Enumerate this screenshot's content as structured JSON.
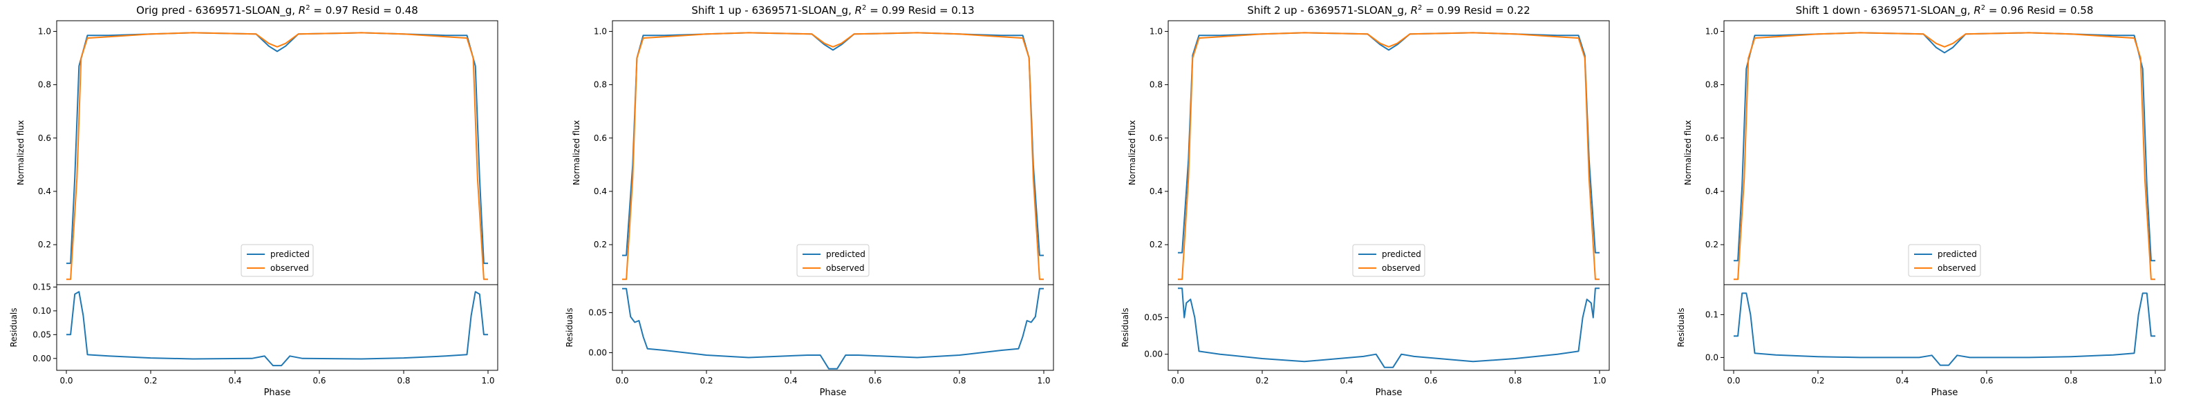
{
  "colors": {
    "predicted": "#1f77b4",
    "observed": "#ff7f0e",
    "axes": "#000000",
    "background": "#ffffff"
  },
  "chart_data": [
    {
      "type": "line",
      "title": "Orig pred - 6369571-SLOAN_g, $R^2 = 0.97$ Resid = 0.48",
      "title_text": {
        "prefix": "Orig pred - 6369571-SLOAN_g, ",
        "r": "R",
        "sup": "2",
        "rest": " = 0.97 Resid = 0.48"
      },
      "xlabel": "Phase",
      "flux": {
        "ylabel": "Normalized flux",
        "ylim": [
          0.05,
          1.04
        ],
        "yticks": [
          "0.2",
          "0.4",
          "0.6",
          "0.8",
          "1.0"
        ],
        "legend": {
          "position": "lower center",
          "entries": [
            "predicted",
            "observed"
          ]
        },
        "series": [
          {
            "name": "predicted",
            "x": [
              0.0,
              0.01,
              0.02,
              0.03,
              0.05,
              0.1,
              0.2,
              0.3,
              0.45,
              0.48,
              0.5,
              0.52,
              0.55,
              0.7,
              0.8,
              0.9,
              0.95,
              0.97,
              0.98,
              0.99,
              1.0
            ],
            "y": [
              0.13,
              0.13,
              0.45,
              0.87,
              0.985,
              0.985,
              0.99,
              0.995,
              0.99,
              0.945,
              0.925,
              0.945,
              0.99,
              0.995,
              0.99,
              0.985,
              0.985,
              0.87,
              0.45,
              0.13,
              0.13
            ]
          },
          {
            "name": "observed",
            "x": [
              0.0,
              0.01,
              0.025,
              0.035,
              0.05,
              0.1,
              0.2,
              0.3,
              0.45,
              0.48,
              0.5,
              0.52,
              0.55,
              0.7,
              0.8,
              0.9,
              0.95,
              0.965,
              0.975,
              0.99,
              1.0
            ],
            "y": [
              0.07,
              0.07,
              0.45,
              0.9,
              0.975,
              0.98,
              0.99,
              0.995,
              0.99,
              0.955,
              0.942,
              0.955,
              0.99,
              0.995,
              0.99,
              0.98,
              0.975,
              0.9,
              0.45,
              0.07,
              0.07
            ]
          }
        ]
      },
      "resid": {
        "ylabel": "Residuals",
        "ylim": [
          -0.025,
          0.155
        ],
        "yticks": [
          "0.00",
          "0.05",
          "0.10",
          "0.15"
        ],
        "xticks": [
          "0.0",
          "0.2",
          "0.4",
          "0.6",
          "0.8",
          "1.0"
        ],
        "x": [
          0.0,
          0.01,
          0.02,
          0.03,
          0.04,
          0.05,
          0.1,
          0.2,
          0.3,
          0.44,
          0.47,
          0.49,
          0.51,
          0.53,
          0.56,
          0.7,
          0.8,
          0.9,
          0.95,
          0.96,
          0.97,
          0.98,
          0.99,
          1.0
        ],
        "y": [
          0.05,
          0.05,
          0.135,
          0.14,
          0.09,
          0.008,
          0.005,
          0.001,
          -0.001,
          0.0,
          0.005,
          -0.015,
          -0.015,
          0.005,
          0.0,
          -0.001,
          0.001,
          0.005,
          0.008,
          0.09,
          0.14,
          0.135,
          0.05,
          0.05
        ]
      }
    },
    {
      "type": "line",
      "title": "Shift 1 up - 6369571-SLOAN_g, $R^2 = 0.99$ Resid = 0.13",
      "title_text": {
        "prefix": "Shift 1 up - 6369571-SLOAN_g, ",
        "r": "R",
        "sup": "2",
        "rest": " = 0.99 Resid = 0.13"
      },
      "xlabel": "Phase",
      "flux": {
        "ylabel": "Normalized flux",
        "ylim": [
          0.05,
          1.04
        ],
        "yticks": [
          "0.2",
          "0.4",
          "0.6",
          "0.8",
          "1.0"
        ],
        "legend": {
          "position": "lower center",
          "entries": [
            "predicted",
            "observed"
          ]
        },
        "series": [
          {
            "name": "predicted",
            "x": [
              0.0,
              0.01,
              0.025,
              0.035,
              0.05,
              0.1,
              0.2,
              0.3,
              0.45,
              0.48,
              0.5,
              0.52,
              0.55,
              0.7,
              0.8,
              0.9,
              0.95,
              0.965,
              0.975,
              0.99,
              1.0
            ],
            "y": [
              0.16,
              0.16,
              0.5,
              0.9,
              0.985,
              0.985,
              0.99,
              0.995,
              0.99,
              0.95,
              0.93,
              0.95,
              0.99,
              0.995,
              0.99,
              0.985,
              0.985,
              0.9,
              0.5,
              0.16,
              0.16
            ]
          },
          {
            "name": "observed",
            "x": [
              0.0,
              0.01,
              0.025,
              0.035,
              0.05,
              0.1,
              0.2,
              0.3,
              0.45,
              0.48,
              0.5,
              0.52,
              0.55,
              0.7,
              0.8,
              0.9,
              0.95,
              0.965,
              0.975,
              0.99,
              1.0
            ],
            "y": [
              0.07,
              0.07,
              0.45,
              0.9,
              0.975,
              0.98,
              0.99,
              0.995,
              0.99,
              0.955,
              0.942,
              0.955,
              0.99,
              0.995,
              0.99,
              0.98,
              0.975,
              0.9,
              0.45,
              0.07,
              0.07
            ]
          }
        ]
      },
      "resid": {
        "ylabel": "Residuals",
        "ylim": [
          -0.022,
          0.085
        ],
        "yticks": [
          "0.00",
          "0.05"
        ],
        "xticks": [
          "0.0",
          "0.2",
          "0.4",
          "0.6",
          "0.8",
          "1.0"
        ],
        "x": [
          0.0,
          0.01,
          0.02,
          0.03,
          0.04,
          0.05,
          0.06,
          0.1,
          0.2,
          0.3,
          0.44,
          0.47,
          0.49,
          0.51,
          0.53,
          0.56,
          0.7,
          0.8,
          0.9,
          0.94,
          0.95,
          0.96,
          0.97,
          0.98,
          0.99,
          1.0
        ],
        "y": [
          0.08,
          0.08,
          0.045,
          0.038,
          0.04,
          0.02,
          0.005,
          0.003,
          -0.003,
          -0.006,
          -0.003,
          -0.003,
          -0.02,
          -0.02,
          -0.003,
          -0.003,
          -0.006,
          -0.003,
          0.003,
          0.005,
          0.02,
          0.04,
          0.038,
          0.045,
          0.08,
          0.08
        ]
      }
    },
    {
      "type": "line",
      "title": "Shift 2 up - 6369571-SLOAN_g, $R^2 = 0.99$ Resid = 0.22",
      "title_text": {
        "prefix": "Shift 2 up - 6369571-SLOAN_g, ",
        "r": "R",
        "sup": "2",
        "rest": " = 0.99 Resid = 0.22"
      },
      "xlabel": "Phase",
      "flux": {
        "ylabel": "Normalized flux",
        "ylim": [
          0.05,
          1.04
        ],
        "yticks": [
          "0.2",
          "0.4",
          "0.6",
          "0.8",
          "1.0"
        ],
        "legend": {
          "position": "lower center",
          "entries": [
            "predicted",
            "observed"
          ]
        },
        "series": [
          {
            "name": "predicted",
            "x": [
              0.0,
              0.01,
              0.025,
              0.035,
              0.05,
              0.1,
              0.2,
              0.3,
              0.45,
              0.48,
              0.5,
              0.52,
              0.55,
              0.7,
              0.8,
              0.9,
              0.95,
              0.965,
              0.975,
              0.99,
              1.0
            ],
            "y": [
              0.17,
              0.17,
              0.52,
              0.91,
              0.985,
              0.985,
              0.99,
              0.995,
              0.99,
              0.95,
              0.93,
              0.95,
              0.99,
              0.995,
              0.99,
              0.985,
              0.985,
              0.91,
              0.52,
              0.17,
              0.17
            ]
          },
          {
            "name": "observed",
            "x": [
              0.0,
              0.01,
              0.025,
              0.035,
              0.05,
              0.1,
              0.2,
              0.3,
              0.45,
              0.48,
              0.5,
              0.52,
              0.55,
              0.7,
              0.8,
              0.9,
              0.95,
              0.965,
              0.975,
              0.99,
              1.0
            ],
            "y": [
              0.07,
              0.07,
              0.45,
              0.9,
              0.975,
              0.98,
              0.99,
              0.995,
              0.99,
              0.955,
              0.942,
              0.955,
              0.99,
              0.995,
              0.99,
              0.98,
              0.975,
              0.9,
              0.45,
              0.07,
              0.07
            ]
          }
        ]
      },
      "resid": {
        "ylabel": "Residuals",
        "ylim": [
          -0.022,
          0.095
        ],
        "yticks": [
          "0.00",
          "0.05"
        ],
        "xticks": [
          "0.0",
          "0.2",
          "0.4",
          "0.6",
          "0.8",
          "1.0"
        ],
        "x": [
          0.0,
          0.01,
          0.015,
          0.02,
          0.03,
          0.04,
          0.05,
          0.1,
          0.2,
          0.3,
          0.44,
          0.47,
          0.49,
          0.51,
          0.53,
          0.56,
          0.7,
          0.8,
          0.9,
          0.95,
          0.96,
          0.97,
          0.98,
          0.985,
          0.99,
          1.0
        ],
        "y": [
          0.09,
          0.09,
          0.05,
          0.07,
          0.075,
          0.05,
          0.004,
          0.0,
          -0.006,
          -0.01,
          -0.003,
          0.0,
          -0.018,
          -0.018,
          0.0,
          -0.003,
          -0.01,
          -0.006,
          0.0,
          0.004,
          0.05,
          0.075,
          0.07,
          0.05,
          0.09,
          0.09
        ]
      }
    },
    {
      "type": "line",
      "title": "Shift 1 down - 6369571-SLOAN_g, $R^2 = 0.96$ Resid = 0.58",
      "title_text": {
        "prefix": "Shift 1 down - 6369571-SLOAN_g, ",
        "r": "R",
        "sup": "2",
        "rest": " = 0.96 Resid = 0.58"
      },
      "xlabel": "Phase",
      "flux": {
        "ylabel": "Normalized flux",
        "ylim": [
          0.05,
          1.04
        ],
        "yticks": [
          "0.2",
          "0.4",
          "0.6",
          "0.8",
          "1.0"
        ],
        "legend": {
          "position": "lower center",
          "entries": [
            "predicted",
            "observed"
          ]
        },
        "series": [
          {
            "name": "predicted",
            "x": [
              0.0,
              0.01,
              0.02,
              0.03,
              0.05,
              0.1,
              0.2,
              0.3,
              0.45,
              0.48,
              0.5,
              0.52,
              0.55,
              0.7,
              0.8,
              0.9,
              0.95,
              0.97,
              0.98,
              0.99,
              1.0
            ],
            "y": [
              0.14,
              0.14,
              0.42,
              0.86,
              0.985,
              0.985,
              0.99,
              0.995,
              0.99,
              0.94,
              0.92,
              0.94,
              0.99,
              0.995,
              0.99,
              0.985,
              0.985,
              0.86,
              0.42,
              0.14,
              0.14
            ]
          },
          {
            "name": "observed",
            "x": [
              0.0,
              0.01,
              0.025,
              0.035,
              0.05,
              0.1,
              0.2,
              0.3,
              0.45,
              0.48,
              0.5,
              0.52,
              0.55,
              0.7,
              0.8,
              0.9,
              0.95,
              0.965,
              0.975,
              0.99,
              1.0
            ],
            "y": [
              0.07,
              0.07,
              0.45,
              0.9,
              0.975,
              0.98,
              0.99,
              0.995,
              0.99,
              0.955,
              0.942,
              0.955,
              0.99,
              0.995,
              0.99,
              0.98,
              0.975,
              0.9,
              0.45,
              0.07,
              0.07
            ]
          }
        ]
      },
      "resid": {
        "ylabel": "Residuals",
        "ylim": [
          -0.03,
          0.17
        ],
        "yticks": [
          "0.0",
          "0.1"
        ],
        "xticks": [
          "0.0",
          "0.2",
          "0.4",
          "0.6",
          "0.8",
          "1.0"
        ],
        "x": [
          0.0,
          0.01,
          0.02,
          0.03,
          0.04,
          0.05,
          0.1,
          0.2,
          0.3,
          0.44,
          0.47,
          0.49,
          0.51,
          0.53,
          0.56,
          0.7,
          0.8,
          0.9,
          0.95,
          0.96,
          0.97,
          0.98,
          0.99,
          1.0
        ],
        "y": [
          0.05,
          0.05,
          0.15,
          0.15,
          0.1,
          0.01,
          0.006,
          0.002,
          0.0,
          0.0,
          0.005,
          -0.018,
          -0.018,
          0.005,
          0.0,
          0.0,
          0.002,
          0.006,
          0.01,
          0.1,
          0.15,
          0.15,
          0.05,
          0.05
        ]
      }
    }
  ]
}
